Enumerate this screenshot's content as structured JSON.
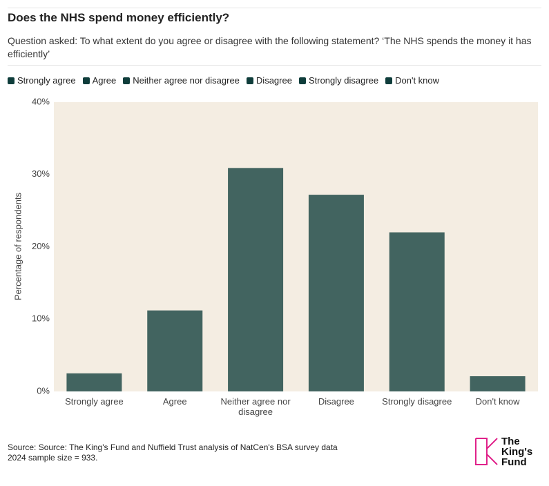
{
  "chart_data": {
    "type": "bar",
    "title": "Does the NHS spend money efficiently?",
    "subtitle": "Question asked: To what extent do you agree or disagree with the following statement? ‘The NHS spends the money it has efficiently’",
    "categories": [
      "Strongly agree",
      "Agree",
      "Neither agree nor disagree",
      "Disagree",
      "Strongly disagree",
      "Don't know"
    ],
    "values": [
      2.5,
      11.2,
      30.9,
      27.2,
      22,
      2.1
    ],
    "color": "#0f3d3b",
    "ylabel": "Percentage of respondents",
    "ylim": [
      0,
      40
    ],
    "yticks": [
      {
        "value": 0,
        "label": "0%"
      },
      {
        "value": 10,
        "label": "10%"
      },
      {
        "value": 20,
        "label": "20%"
      },
      {
        "value": 30,
        "label": "30%"
      },
      {
        "value": 40,
        "label": "40%"
      }
    ],
    "grid": false,
    "legend": "top",
    "source": [
      "Source: Source: The King's Fund and Nuffield Trust analysis of NatCen's BSA survey data",
      "2024 sample size = 933."
    ]
  },
  "logo": [
    "The",
    "King's",
    "Fund"
  ]
}
